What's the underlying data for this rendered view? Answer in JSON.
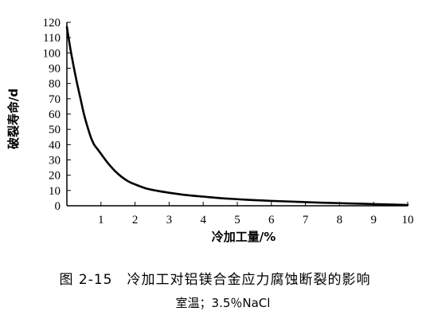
{
  "chart_data": {
    "type": "line",
    "xlabel": "冷加工量/%",
    "ylabel": "破裂寿命/d",
    "xlim": [
      0,
      10
    ],
    "ylim": [
      0,
      120
    ],
    "xticks": [
      1,
      2,
      3,
      4,
      5,
      6,
      7,
      8,
      9,
      10
    ],
    "yticks": [
      0,
      10,
      20,
      30,
      40,
      50,
      60,
      70,
      80,
      90,
      100,
      110,
      120
    ],
    "grid": false,
    "series": [
      {
        "x": [
          0,
          0.1,
          0.2,
          0.3,
          0.4,
          0.5,
          0.6,
          0.7,
          0.8,
          0.9,
          1.0,
          1.2,
          1.4,
          1.6,
          1.8,
          2.0,
          2.3,
          2.6,
          3.0,
          3.5,
          4.0,
          4.5,
          5.0,
          5.5,
          6.0,
          6.5,
          7.0,
          7.5,
          8.0,
          8.5,
          9.0,
          9.5,
          10.0
        ],
        "y": [
          117,
          103,
          91,
          80,
          70,
          60,
          52,
          45,
          40,
          37,
          34,
          28,
          23,
          19,
          16,
          14,
          11.5,
          10,
          8.5,
          7,
          6,
          5,
          4.3,
          3.7,
          3.2,
          2.8,
          2.4,
          2.0,
          1.7,
          1.4,
          1.1,
          0.8,
          0.5
        ]
      }
    ]
  },
  "caption": {
    "figure": "图 2-15　冷加工对铝镁合金应力腐蚀断裂的影响",
    "condition": "室温；3.5％NaCl"
  }
}
